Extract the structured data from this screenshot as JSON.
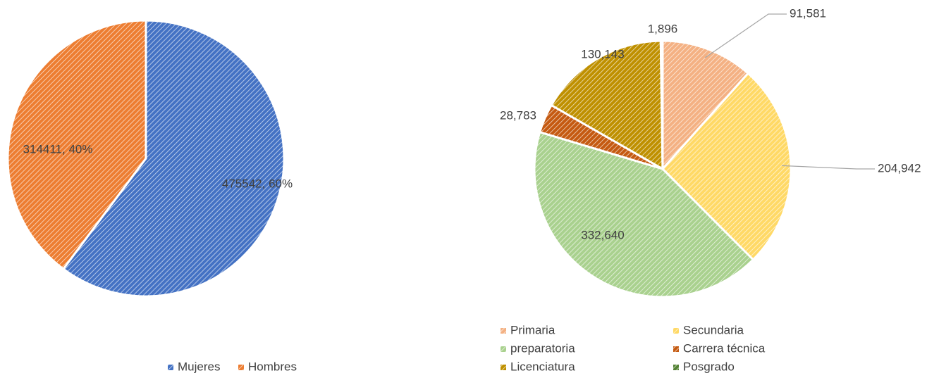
{
  "chart_data": [
    {
      "type": "pie",
      "categories": [
        "Mujeres",
        "Hombres"
      ],
      "values": [
        475542,
        314411
      ],
      "value_labels": [
        "475542, 60%",
        "314411, 40%"
      ],
      "colors": [
        "#4472c4",
        "#ed7d31"
      ],
      "legend": "bottom"
    },
    {
      "type": "pie",
      "categories": [
        "Primaria",
        "Secundaria",
        "preparatoria",
        "Carrera técnica",
        "Licenciatura",
        "Posgrado"
      ],
      "values": [
        91581,
        204942,
        332640,
        28783,
        130143,
        1896
      ],
      "value_labels": [
        "91,581",
        "204,942",
        "332,640",
        "28,783",
        "130,143",
        "1,896"
      ],
      "colors": [
        "#f4b183",
        "#ffd966",
        "#a9d18e",
        "#c55a11",
        "#bf9000",
        "#548235"
      ],
      "legend": "bottom"
    }
  ]
}
